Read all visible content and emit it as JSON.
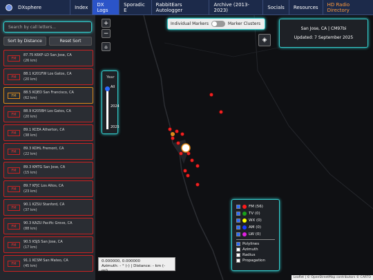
{
  "nav": {
    "brand": "DXsphere",
    "tabs": [
      "Index",
      "DX Logs",
      "Sporadic E",
      "RabbitEars Autologger",
      "Archive (2013-2023)",
      "Socials",
      "Resources",
      "HD Radio Directory"
    ]
  },
  "sidebar": {
    "search_placeholder": "Search by call letters...",
    "sort_button": "Sort by Distance",
    "reset_button": "Reset Sort",
    "stations": [
      {
        "band": "FM",
        "name": "87.75 K6KF-LD San Jose, CA",
        "distance": "(26 km)"
      },
      {
        "band": "FM",
        "name": "88.1 K201FW Los Gatos, CA",
        "distance": "(20 km)"
      },
      {
        "band": "FM",
        "name": "88.5 KQED San Francisco, CA",
        "distance": "(62 km)"
      },
      {
        "band": "FM",
        "name": "88.9 K205BH Los Gatos, CA",
        "distance": "(20 km)"
      },
      {
        "band": "FM",
        "name": "89.1 KCEA Atherton, CA",
        "distance": "(38 km)"
      },
      {
        "band": "FM",
        "name": "89.3 KOHL Fremont, CA",
        "distance": "(22 km)"
      },
      {
        "band": "FM",
        "name": "89.3 KMTG San Jose, CA",
        "distance": "(15 km)"
      },
      {
        "band": "FM",
        "name": "89.7 KFJC Los Altos, CA",
        "distance": "(23 km)"
      },
      {
        "band": "FM",
        "name": "90.1 KZSU Stanford, CA",
        "distance": "(37 km)"
      },
      {
        "band": "FM",
        "name": "90.3 KAZU Pacific Grove, CA",
        "distance": "(88 km)"
      },
      {
        "band": "FM",
        "name": "90.5 KSJS San Jose, CA",
        "distance": "(17 km)"
      },
      {
        "band": "FM",
        "name": "91.1 KCSM San Mateo, CA",
        "distance": "(45 km)"
      }
    ]
  },
  "map": {
    "zoom_in": "+",
    "zoom_out": "−",
    "year_label": "Year",
    "year_options": [
      "All",
      "2024",
      "2025"
    ],
    "toggle": {
      "left": "Individual Markers",
      "right": "Marker Clusters"
    },
    "info": {
      "location": "San Jose, CA | CM97bi",
      "updated": "Updated: 7 September 2025"
    },
    "legend": {
      "bands": [
        {
          "label": "FM (56)",
          "color": "#ff1a1a"
        },
        {
          "label": "TV (0)",
          "color": "#1aa01a"
        },
        {
          "label": "WX (0)",
          "color": "#ffff00"
        },
        {
          "label": "AM (0)",
          "color": "#1a3cff"
        },
        {
          "label": "LW (0)",
          "color": "#e020e0"
        }
      ],
      "options": [
        "Polylines",
        "Azimuth",
        "Radius",
        "Propagation"
      ]
    },
    "coords": {
      "position": "0.000000, 0.000000",
      "measure": "Azimuth: - ° (-) | Distance: - km (- mi)"
    },
    "attribution": "Leaflet | © OpenStreetMap contributors © CARTO"
  }
}
